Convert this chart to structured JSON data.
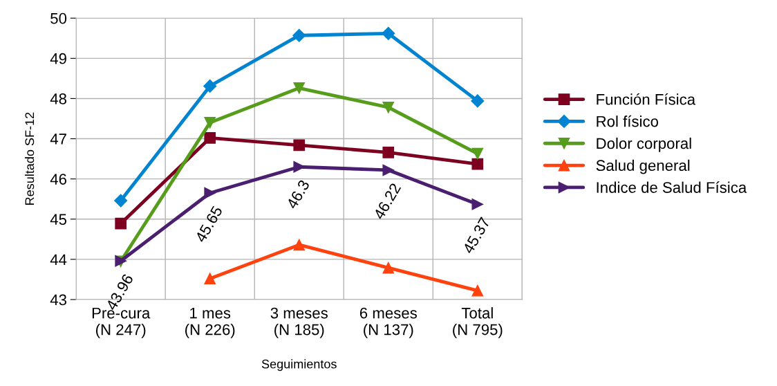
{
  "chart_data": {
    "type": "line",
    "xlabel": "Seguimientos",
    "ylabel": "Resultado SF-12",
    "categories": [
      "Pre-cura\n(N 247)",
      "1 mes\n(N 226)",
      "3 meses\n(N 185)",
      "6 meses\n(N 137)",
      "Total\n(N 795)"
    ],
    "ylim": [
      43,
      50
    ],
    "yticks": [
      43,
      44,
      45,
      46,
      47,
      48,
      49,
      50
    ],
    "grid": true,
    "legend": "right",
    "line_style": "solid",
    "series": [
      {
        "name": "Función Física",
        "color": "#7e0021",
        "marker": "square",
        "values": [
          44.89,
          47.02,
          46.84,
          46.66,
          46.37
        ]
      },
      {
        "name": "Rol físico",
        "color": "#0084d1",
        "marker": "diamond",
        "values": [
          45.46,
          48.31,
          49.57,
          49.62,
          47.94
        ]
      },
      {
        "name": "Dolor corporal",
        "color": "#579d1c",
        "marker": "triangle_down",
        "values": [
          43.95,
          47.4,
          48.26,
          47.78,
          46.63
        ]
      },
      {
        "name": "Salud general",
        "color": "#ff420e",
        "marker": "triangle",
        "values": [
          null,
          43.52,
          44.36,
          43.79,
          43.22
        ]
      },
      {
        "name": "Indice de Salud Física",
        "color": "#4b1f6f",
        "marker": "triangle_right",
        "values": [
          43.96,
          45.65,
          46.3,
          46.22,
          45.37
        ],
        "value_labels": [
          "43.96",
          "45.65",
          "46.3",
          "46.22",
          "45.37"
        ]
      }
    ]
  }
}
